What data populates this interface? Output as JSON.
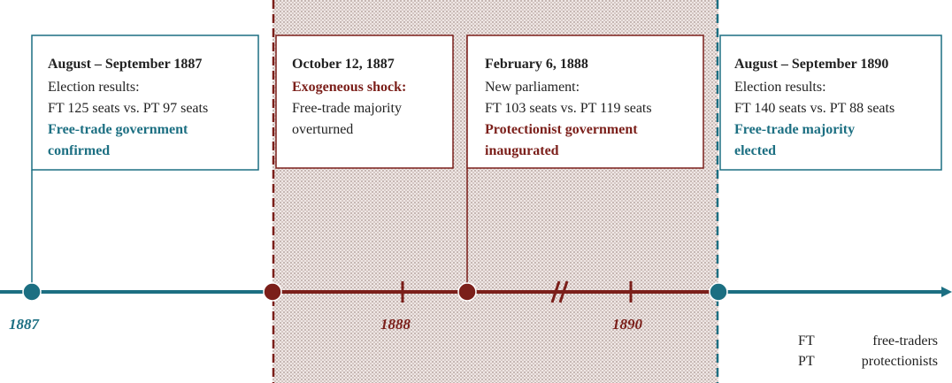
{
  "boxes": [
    {
      "date": "August – September 1887",
      "lines": [
        "Election results:",
        "FT 125 seats vs. PT 97 seats"
      ],
      "highlight": [
        "Free-trade government",
        "confirmed"
      ]
    },
    {
      "date": "October 12, 1887",
      "highlight": [
        "Exogeneous shock:"
      ],
      "lines": [
        "Free-trade majority",
        "overturned"
      ]
    },
    {
      "date": "February 6, 1888",
      "lines": [
        "New parliament:",
        "FT 103 seats vs. PT 119 seats"
      ],
      "highlight": [
        "Protectionist government",
        "inaugurated"
      ]
    },
    {
      "date": "August – September 1890",
      "lines": [
        "Election results:",
        "FT 140 seats vs. PT 88 seats"
      ],
      "highlight": [
        "Free-trade majority",
        "elected"
      ]
    }
  ],
  "axis_labels": [
    "1887",
    "1888",
    "1890"
  ],
  "legend": [
    {
      "abbr": "FT",
      "meaning": "free-traders"
    },
    {
      "abbr": "PT",
      "meaning": "protectionists"
    }
  ]
}
